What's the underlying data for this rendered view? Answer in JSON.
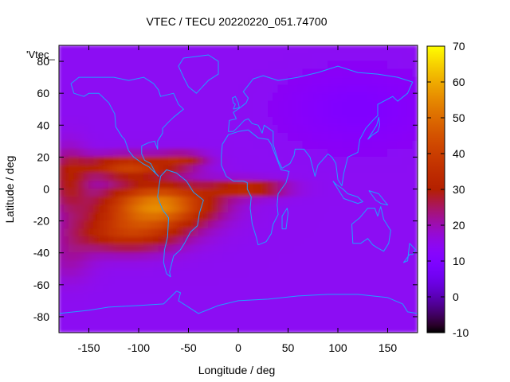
{
  "chart_data": {
    "type": "heatmap",
    "title": "VTEC / TECU 20220220_051.74700",
    "xlabel": "Longitude / deg",
    "ylabel": "Latitude / deg",
    "xlim": [
      -180,
      180
    ],
    "ylim": [
      -90,
      90
    ],
    "x_ticks": [
      -150,
      -100,
      -50,
      0,
      50,
      100,
      150
    ],
    "x_tick_labels": [
      "-150",
      "-100",
      "-50",
      "0",
      "50",
      "100",
      "150"
    ],
    "y_ticks": [
      80,
      60,
      40,
      20,
      0,
      -20,
      -40,
      -60,
      -80
    ],
    "y_tick_labels": [
      "80",
      "60",
      "40",
      "20",
      "0",
      "-20",
      "-40",
      "-60",
      "-80"
    ],
    "legend_key": "'Vtec_",
    "colorbar": {
      "range": [
        -10,
        70
      ],
      "ticks": [
        70,
        60,
        50,
        40,
        30,
        20,
        10,
        0,
        -10
      ],
      "tick_labels": [
        "70",
        "60",
        "50",
        "40",
        "30",
        "20",
        "10",
        "0",
        "-10"
      ],
      "colormap": "gnuplot-pm3d-default"
    },
    "grid": false,
    "overlay": "coastlines",
    "features": [
      {
        "name": "main-crest",
        "lon": -80,
        "lat": -10,
        "vtec": 58
      },
      {
        "name": "equatorial-anomaly-north",
        "lon": -90,
        "lat": 15,
        "vtec": 42
      },
      {
        "name": "southern-crest",
        "lon": -80,
        "lat": -30,
        "vtec": 45
      },
      {
        "name": "atlantic-tongue",
        "lon": 15,
        "lat": 0,
        "vtec": 38
      },
      {
        "name": "background",
        "vtec": 14
      }
    ]
  },
  "colors": {
    "coastline": "#1fa0ff",
    "axis": "#000000",
    "background": "#ffffff"
  }
}
